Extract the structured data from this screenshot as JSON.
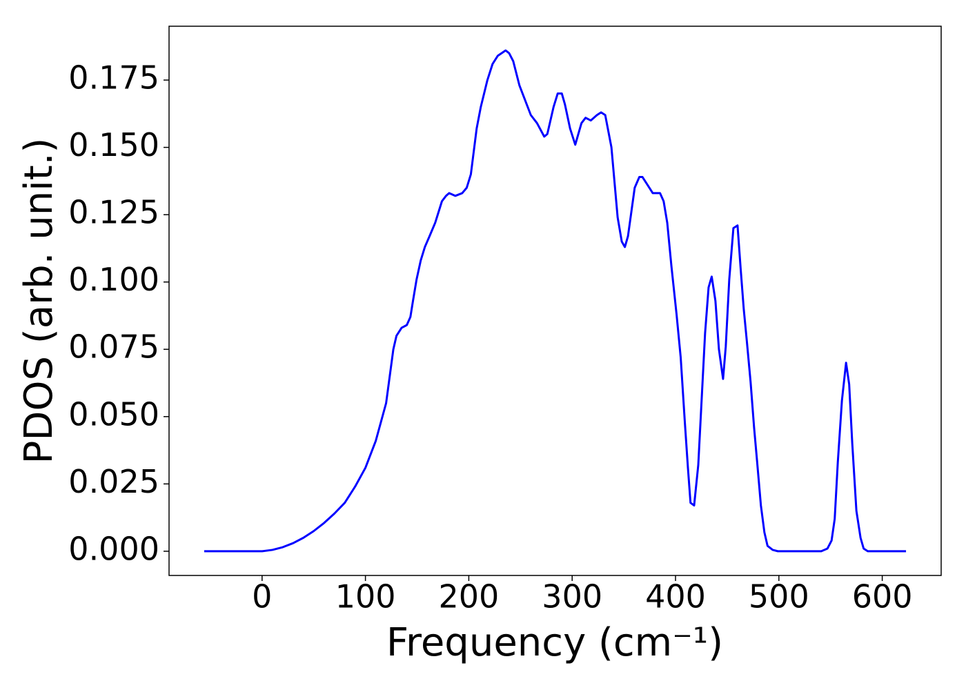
{
  "chart_data": {
    "type": "line",
    "x_label": "Frequency (cm⁻¹)",
    "y_label": "PDOS (arb. unit.)",
    "x": [
      -56,
      0,
      10,
      20,
      30,
      40,
      50,
      60,
      70,
      80,
      90,
      100,
      110,
      120,
      127,
      130,
      135,
      140,
      143.5,
      146,
      149.5,
      153.5,
      157.5,
      162,
      167.5,
      174,
      178,
      181,
      187,
      193.6,
      198,
      202,
      207.6,
      211.6,
      218,
      223,
      228,
      235.6,
      239,
      243,
      249,
      255,
      260,
      266,
      273,
      276,
      282,
      286,
      290,
      293,
      298,
      303,
      309,
      313,
      318,
      324,
      328,
      332,
      338,
      344,
      348,
      351,
      354,
      360.5,
      365,
      368,
      373,
      378,
      385,
      388.5,
      392,
      396,
      401,
      405,
      409,
      412,
      414.5,
      418,
      422,
      428.6,
      432,
      435,
      438.6,
      442,
      446,
      448.6,
      452,
      456,
      460,
      463,
      466,
      469,
      472.6,
      476,
      479,
      482.6,
      486,
      489,
      494,
      499,
      541,
      547,
      551,
      554,
      557,
      561,
      565,
      568,
      571,
      575,
      579,
      582,
      586,
      623
    ],
    "series": [
      {
        "name": "PDOS",
        "color": "#0000ff",
        "values": [
          0,
          0,
          0.0005,
          0.0015,
          0.003,
          0.005,
          0.0075,
          0.0105,
          0.014,
          0.018,
          0.024,
          0.031,
          0.041,
          0.055,
          0.075,
          0.08,
          0.083,
          0.084,
          0.087,
          0.093,
          0.101,
          0.108,
          0.113,
          0.117,
          0.122,
          0.13,
          0.132,
          0.133,
          0.132,
          0.133,
          0.135,
          0.14,
          0.157,
          0.165,
          0.175,
          0.181,
          0.184,
          0.186,
          0.185,
          0.182,
          0.173,
          0.167,
          0.162,
          0.159,
          0.154,
          0.155,
          0.165,
          0.17,
          0.17,
          0.166,
          0.157,
          0.151,
          0.159,
          0.161,
          0.16,
          0.162,
          0.163,
          0.162,
          0.15,
          0.124,
          0.115,
          0.113,
          0.117,
          0.135,
          0.139,
          0.139,
          0.136,
          0.133,
          0.133,
          0.13,
          0.122,
          0.106,
          0.088,
          0.072,
          0.048,
          0.031,
          0.018,
          0.017,
          0.032,
          0.081,
          0.098,
          0.102,
          0.093,
          0.075,
          0.064,
          0.076,
          0.101,
          0.12,
          0.121,
          0.105,
          0.09,
          0.078,
          0.063,
          0.046,
          0.033,
          0.017,
          0.007,
          0.002,
          0.0005,
          0,
          0,
          0.001,
          0.004,
          0.012,
          0.033,
          0.056,
          0.07,
          0.062,
          0.04,
          0.015,
          0.005,
          0.001,
          0,
          0
        ]
      }
    ],
    "xlim": [
      -90,
      657
    ],
    "ylim": [
      -0.009,
      0.195
    ],
    "xticks": [
      0,
      100,
      200,
      300,
      400,
      500,
      600
    ],
    "yticks": [
      {
        "value": 0,
        "label": "0.000"
      },
      {
        "value": 0.025,
        "label": "0.025"
      },
      {
        "value": 0.05,
        "label": "0.050"
      },
      {
        "value": 0.075,
        "label": "0.075"
      },
      {
        "value": 0.1,
        "label": "0.100"
      },
      {
        "value": 0.125,
        "label": "0.125"
      },
      {
        "value": 0.15,
        "label": "0.150"
      },
      {
        "value": 0.175,
        "label": "0.175"
      }
    ],
    "grid": false
  }
}
